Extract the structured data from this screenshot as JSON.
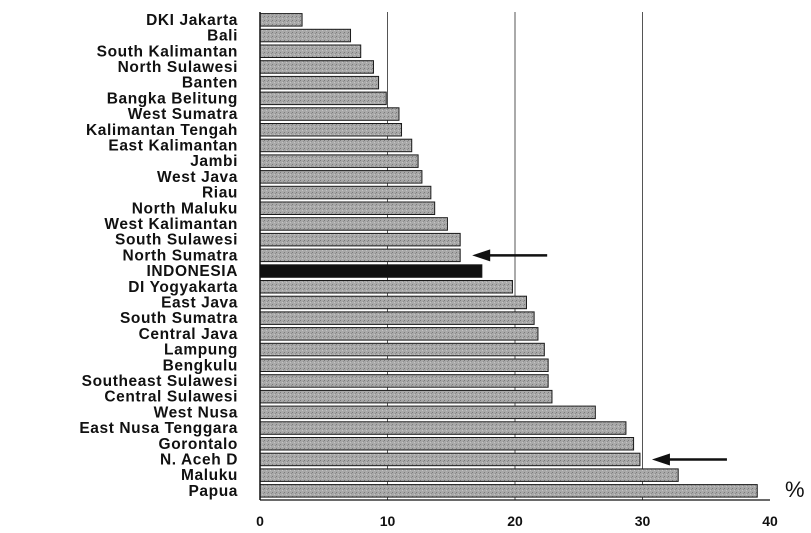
{
  "chart_data": {
    "type": "bar",
    "orientation": "horizontal",
    "title": "",
    "xlabel": "",
    "ylabel": "",
    "unit": "%",
    "xlim": [
      0,
      40
    ],
    "x_ticks": [
      "0",
      "10",
      "20",
      "30",
      "40"
    ],
    "grid": "vertical",
    "categories": [
      "DKI Jakarta",
      "Bali",
      "South Kalimantan",
      "North Sulawesi",
      "Banten",
      "Bangka Belitung",
      "West Sumatra",
      "Kalimantan Tengah",
      "East Kalimantan",
      "Jambi",
      "West Java",
      "Riau",
      "North Maluku",
      "West Kalimantan",
      "South Sulawesi",
      "North Sumatra",
      "INDONESIA",
      "DI Yogyakarta",
      "East Java",
      "South Sumatra",
      "Central Java",
      "Lampung",
      "Bengkulu",
      "Southeast Sulawesi",
      "Central Sulawesi",
      "West Nusa",
      "East Nusa Tenggara",
      "Gorontalo",
      "N. Aceh D",
      "Maluku",
      "Papua"
    ],
    "values": [
      3.3,
      7.1,
      7.9,
      8.9,
      9.3,
      9.9,
      10.9,
      11.1,
      11.9,
      12.4,
      12.7,
      13.4,
      13.7,
      14.7,
      15.7,
      15.7,
      17.4,
      19.8,
      20.9,
      21.5,
      21.8,
      22.3,
      22.6,
      22.6,
      22.9,
      26.3,
      28.7,
      29.3,
      29.8,
      32.8,
      39.0
    ],
    "highlighted_category": "INDONESIA",
    "colors": {
      "bar": "#a9a9a9",
      "highlight": "#111111",
      "grid": "#555555"
    },
    "annotations": [
      {
        "type": "arrow",
        "points_to": "North Sumatra"
      },
      {
        "type": "arrow",
        "points_to": "N. Aceh D"
      }
    ]
  }
}
